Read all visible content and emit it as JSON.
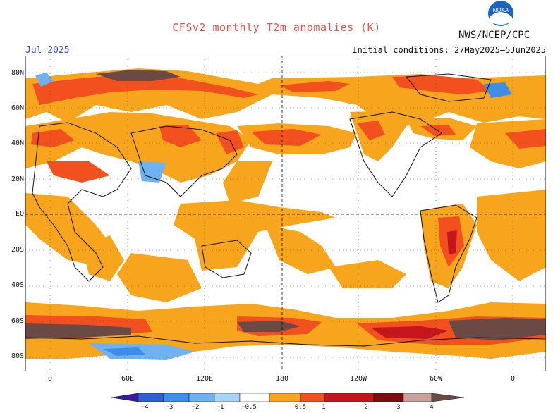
{
  "header": {
    "title": "CFSv2 monthly T2m anomalies (K)",
    "agency": "NWS/NCEP/CPC",
    "month": "Jul 2025",
    "initial_conditions": "Initial conditions: 27May2025–5Jun2025",
    "logo_text": "NOAA"
  },
  "map": {
    "lat_labels": [
      "80N",
      "60N",
      "40N",
      "20N",
      "EQ",
      "20S",
      "40S",
      "60S",
      "80S"
    ],
    "lon_labels": [
      "0",
      "60E",
      "120E",
      "180",
      "120W",
      "60W",
      "0"
    ]
  },
  "legend": {
    "labels": [
      "−4",
      "−3",
      "−2",
      "−1",
      "−0.5",
      "0.5",
      "1",
      "2",
      "3",
      "4"
    ],
    "colors": [
      "#3a1aa0",
      "#2c5fd4",
      "#3c8ee8",
      "#6fb2f2",
      "#a9d2f7",
      "#ffffff",
      "#f7a51c",
      "#f2501e",
      "#c4161c",
      "#7a0e0e",
      "#c9a09a",
      "#6b4a45"
    ]
  }
}
